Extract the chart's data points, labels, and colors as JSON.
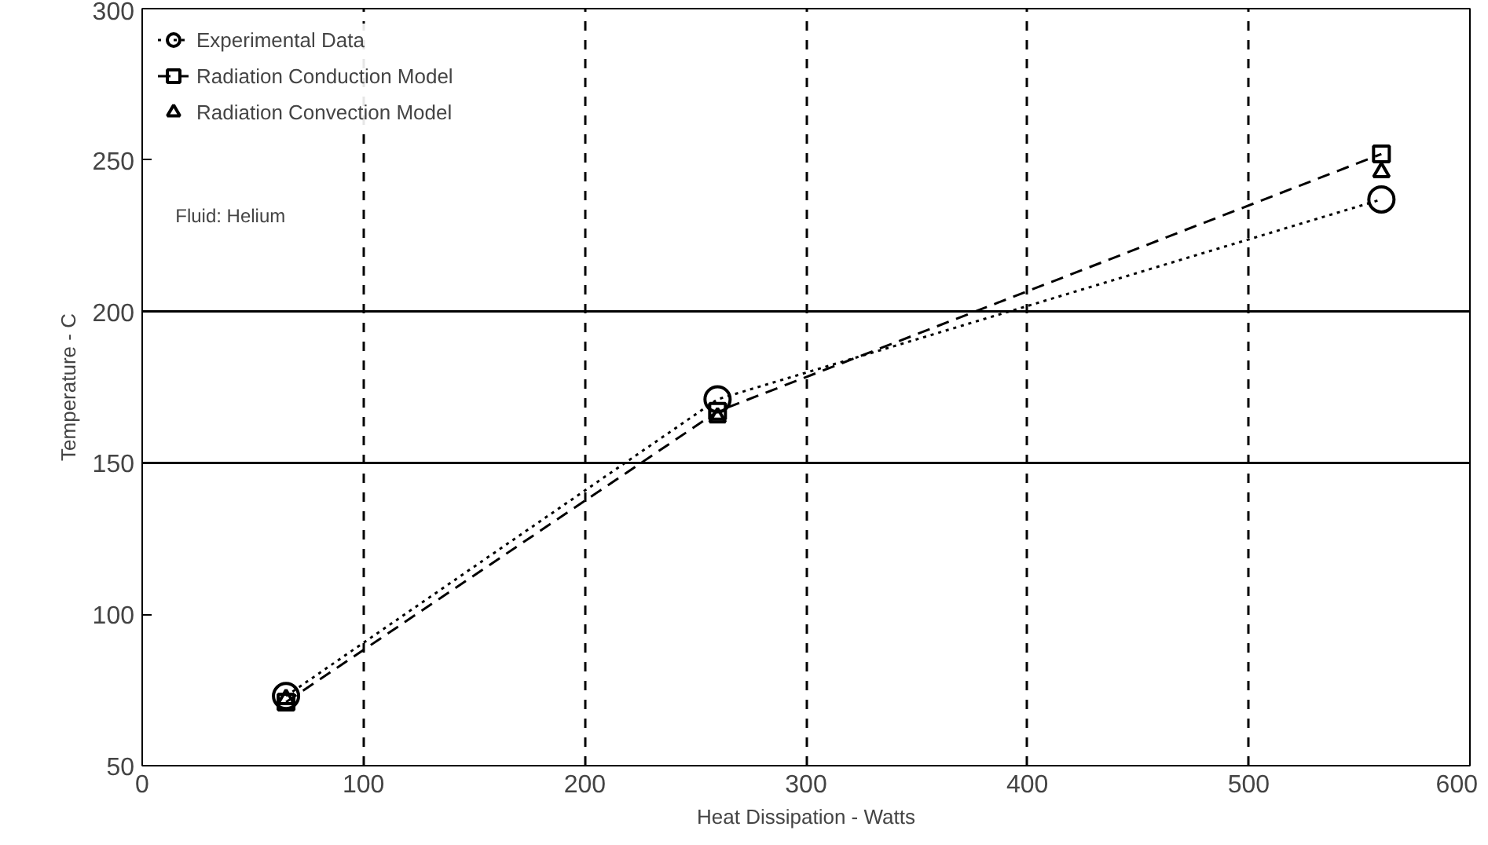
{
  "chart_data": {
    "type": "line",
    "xlabel": "Heat Dissipation - Watts",
    "ylabel": "Temperature - C",
    "x": [
      65,
      260,
      560
    ],
    "series": [
      {
        "name": "Experimental Data",
        "color": "#000000",
        "values": [
          73,
          171,
          237
        ],
        "marker": "circle",
        "line_style": "dotted"
      },
      {
        "name": "Radiation Conduction Model",
        "color": "#000000",
        "values": [
          71,
          167,
          252
        ],
        "marker": "square",
        "line_style": "dashed"
      },
      {
        "name": "Radiation Convection Model",
        "color": "#000000",
        "values": [
          72,
          165,
          246
        ],
        "marker": "triangle",
        "type": "scatter"
      }
    ],
    "xlim": [
      0,
      600
    ],
    "xticks": [
      0,
      100,
      200,
      300,
      400,
      500,
      600
    ],
    "ylim": [
      50,
      300
    ],
    "yticks": [
      50,
      100,
      150,
      200,
      250,
      300
    ],
    "grid": "x",
    "legend": "top left",
    "ref_lines": [
      {
        "axis": "y",
        "value": 150,
        "label": null
      },
      {
        "axis": "y",
        "value": 200,
        "label": null
      }
    ],
    "annotations": [
      "Fluid: Helium"
    ]
  }
}
